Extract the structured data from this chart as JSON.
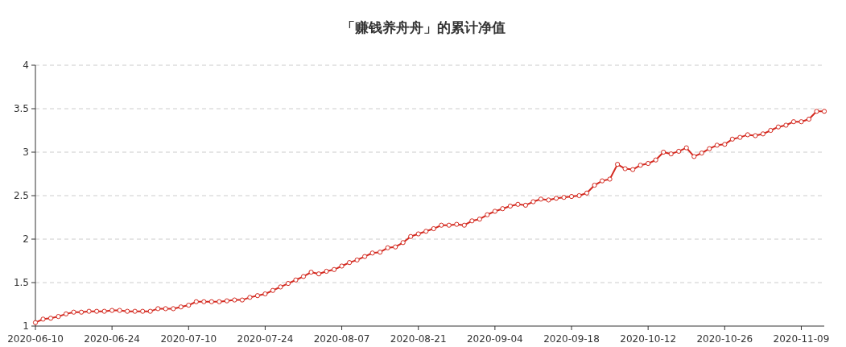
{
  "chart_data": {
    "type": "line",
    "title": "「赚钱养舟舟」的累计净值",
    "categories": [
      "2020-06-10",
      null,
      null,
      null,
      null,
      null,
      null,
      null,
      null,
      null,
      "2020-06-24",
      null,
      null,
      null,
      null,
      null,
      null,
      null,
      null,
      null,
      "2020-07-10",
      null,
      null,
      null,
      null,
      null,
      null,
      null,
      null,
      null,
      "2020-07-24",
      null,
      null,
      null,
      null,
      null,
      null,
      null,
      null,
      null,
      "2020-08-07",
      null,
      null,
      null,
      null,
      null,
      null,
      null,
      null,
      null,
      "2020-08-21",
      null,
      null,
      null,
      null,
      null,
      null,
      null,
      null,
      null,
      "2020-09-04",
      null,
      null,
      null,
      null,
      null,
      null,
      null,
      null,
      null,
      "2020-09-18",
      null,
      null,
      null,
      null,
      null,
      null,
      null,
      null,
      null,
      "2020-10-12",
      null,
      null,
      null,
      null,
      null,
      null,
      null,
      null,
      null,
      "2020-10-26",
      null,
      null,
      null,
      null,
      null,
      null,
      null,
      null,
      null,
      "2020-11-09",
      null,
      null,
      null
    ],
    "values": [
      1.04,
      1.08,
      1.09,
      1.11,
      1.14,
      1.16,
      1.16,
      1.17,
      1.17,
      1.17,
      1.18,
      1.18,
      1.17,
      1.17,
      1.17,
      1.17,
      1.2,
      1.2,
      1.2,
      1.22,
      1.24,
      1.28,
      1.28,
      1.28,
      1.28,
      1.29,
      1.3,
      1.3,
      1.33,
      1.35,
      1.37,
      1.41,
      1.45,
      1.49,
      1.53,
      1.57,
      1.62,
      1.6,
      1.63,
      1.65,
      1.69,
      1.73,
      1.76,
      1.8,
      1.84,
      1.85,
      1.9,
      1.91,
      1.96,
      2.03,
      2.06,
      2.09,
      2.12,
      2.16,
      2.16,
      2.17,
      2.16,
      2.21,
      2.23,
      2.28,
      2.32,
      2.35,
      2.38,
      2.4,
      2.39,
      2.43,
      2.46,
      2.45,
      2.47,
      2.48,
      2.49,
      2.5,
      2.53,
      2.62,
      2.67,
      2.69,
      2.86,
      2.81,
      2.8,
      2.85,
      2.87,
      2.91,
      3.0,
      2.98,
      3.01,
      3.05,
      2.95,
      2.99,
      3.04,
      3.08,
      3.09,
      3.15,
      3.17,
      3.2,
      3.19,
      3.21,
      3.25,
      3.29,
      3.31,
      3.35,
      3.35,
      3.38,
      3.47,
      3.47
    ],
    "color": "#d42a20",
    "ylim": [
      1,
      4
    ],
    "yticks": [
      1,
      1.5,
      2,
      2.5,
      3,
      3.5,
      4
    ],
    "grid": "y",
    "marker": "circle",
    "line_style": "solid"
  }
}
